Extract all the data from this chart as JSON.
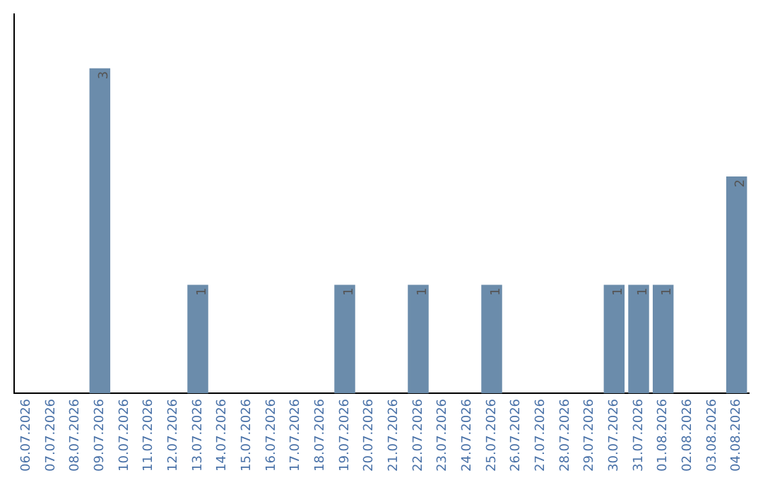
{
  "chart_data": {
    "type": "bar",
    "categories": [
      "06.07.2026",
      "07.07.2026",
      "08.07.2026",
      "09.07.2026",
      "10.07.2026",
      "11.07.2026",
      "12.07.2026",
      "13.07.2026",
      "14.07.2026",
      "15.07.2026",
      "16.07.2026",
      "17.07.2026",
      "18.07.2026",
      "19.07.2026",
      "20.07.2026",
      "21.07.2026",
      "22.07.2026",
      "23.07.2026",
      "24.07.2026",
      "25.07.2026",
      "26.07.2026",
      "27.07.2026",
      "28.07.2026",
      "29.07.2026",
      "30.07.2026",
      "31.07.2026",
      "01.08.2026",
      "02.08.2026",
      "03.08.2026",
      "04.08.2026"
    ],
    "values": [
      0,
      0,
      0,
      3,
      0,
      0,
      0,
      1,
      0,
      0,
      0,
      0,
      0,
      1,
      0,
      0,
      1,
      0,
      0,
      1,
      0,
      0,
      0,
      0,
      1,
      1,
      1,
      0,
      0,
      2
    ],
    "value_labels": [
      null,
      null,
      null,
      "3",
      null,
      null,
      null,
      "1",
      null,
      null,
      null,
      null,
      null,
      "1",
      null,
      null,
      "1",
      null,
      null,
      "1",
      null,
      null,
      null,
      null,
      "1",
      "1",
      "1",
      null,
      null,
      "2"
    ],
    "color": "#6b8cab",
    "grid": false,
    "legend": false,
    "tick_labels": "x"
  }
}
